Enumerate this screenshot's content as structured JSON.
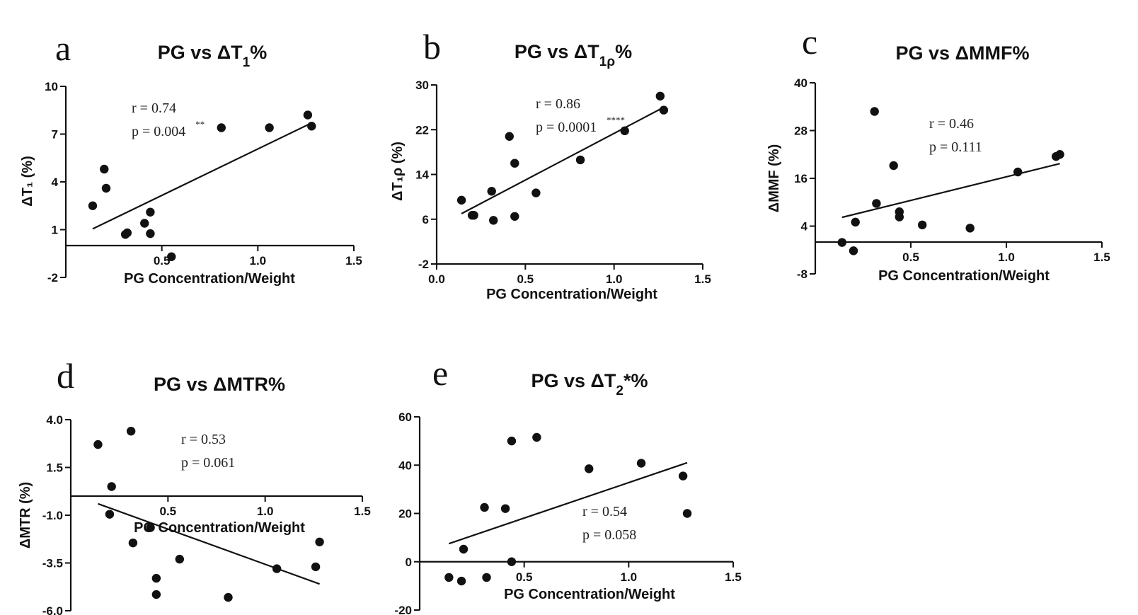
{
  "chart_data": [
    {
      "id": "a",
      "type": "scatter",
      "panel_label": "a",
      "title": "PG vs ΔT₁%",
      "xlabel": "PG Concentration/Weight",
      "ylabel": "ΔT₁ (%)",
      "xlim": [
        0,
        1.5
      ],
      "ylim": [
        -2,
        10
      ],
      "x_axis_at_y": 0,
      "x_ticks": [
        {
          "v": 0.5,
          "label": "0.5"
        },
        {
          "v": 1.0,
          "label": "1.0"
        },
        {
          "v": 1.5,
          "label": "1.5"
        }
      ],
      "y_ticks": [
        {
          "v": -2,
          "label": "-2"
        },
        {
          "v": 1,
          "label": "1"
        },
        {
          "v": 4,
          "label": "4"
        },
        {
          "v": 7,
          "label": "7"
        },
        {
          "v": 10,
          "label": "10"
        }
      ],
      "points": [
        {
          "x": 0.14,
          "y": 2.5
        },
        {
          "x": 0.2,
          "y": 4.8
        },
        {
          "x": 0.21,
          "y": 3.6
        },
        {
          "x": 0.31,
          "y": 0.7
        },
        {
          "x": 0.32,
          "y": 0.8
        },
        {
          "x": 0.41,
          "y": 1.4
        },
        {
          "x": 0.44,
          "y": 2.1
        },
        {
          "x": 0.44,
          "y": 0.75
        },
        {
          "x": 0.55,
          "y": -0.7
        },
        {
          "x": 0.81,
          "y": 7.4
        },
        {
          "x": 1.06,
          "y": 7.4
        },
        {
          "x": 1.26,
          "y": 8.2
        },
        {
          "x": 1.28,
          "y": 7.5
        }
      ],
      "fit": {
        "x1": 0.14,
        "y1": 1.05,
        "x2": 1.28,
        "y2": 7.7
      },
      "stats": {
        "r": "r = 0.74",
        "p": "p = 0.004",
        "p_sup": "**"
      }
    },
    {
      "id": "b",
      "type": "scatter",
      "panel_label": "b",
      "title": "PG vs ΔT₁ρ%",
      "xlabel": "PG Concentration/Weight",
      "ylabel": "ΔT₁ρ (%)",
      "xlim": [
        0,
        1.5
      ],
      "ylim": [
        -2,
        30
      ],
      "x_axis_at_y": -2,
      "x_ticks": [
        {
          "v": 0.0,
          "label": "0.0"
        },
        {
          "v": 0.5,
          "label": "0.5"
        },
        {
          "v": 1.0,
          "label": "1.0"
        },
        {
          "v": 1.5,
          "label": "1.5"
        }
      ],
      "y_ticks": [
        {
          "v": -2,
          "label": "-2"
        },
        {
          "v": 6,
          "label": "6"
        },
        {
          "v": 14,
          "label": "14"
        },
        {
          "v": 22,
          "label": "22"
        },
        {
          "v": 30,
          "label": "30"
        }
      ],
      "points": [
        {
          "x": 0.14,
          "y": 9.4
        },
        {
          "x": 0.2,
          "y": 6.7
        },
        {
          "x": 0.21,
          "y": 6.7
        },
        {
          "x": 0.31,
          "y": 11.0
        },
        {
          "x": 0.32,
          "y": 5.8
        },
        {
          "x": 0.41,
          "y": 20.8
        },
        {
          "x": 0.44,
          "y": 16.0
        },
        {
          "x": 0.44,
          "y": 6.5
        },
        {
          "x": 0.56,
          "y": 10.7
        },
        {
          "x": 0.81,
          "y": 16.6
        },
        {
          "x": 1.06,
          "y": 21.8
        },
        {
          "x": 1.26,
          "y": 28.0
        },
        {
          "x": 1.28,
          "y": 25.5
        }
      ],
      "fit": {
        "x1": 0.14,
        "y1": 7.0,
        "x2": 1.28,
        "y2": 26.0
      },
      "stats": {
        "r": "r = 0.86",
        "p": "p = 0.0001",
        "p_sup": "****"
      }
    },
    {
      "id": "c",
      "type": "scatter",
      "panel_label": "c",
      "title": "PG vs ΔMMF%",
      "xlabel": "PG Concentration/Weight",
      "ylabel": "ΔMMF (%)",
      "xlim": [
        0,
        1.5
      ],
      "ylim": [
        -8,
        40
      ],
      "x_axis_at_y": 0,
      "x_ticks": [
        {
          "v": 0.5,
          "label": "0.5"
        },
        {
          "v": 1.0,
          "label": "1.0"
        },
        {
          "v": 1.5,
          "label": "1.5"
        }
      ],
      "y_ticks": [
        {
          "v": -8,
          "label": "-8"
        },
        {
          "v": 4,
          "label": "4"
        },
        {
          "v": 16,
          "label": "16"
        },
        {
          "v": 28,
          "label": "28"
        },
        {
          "v": 40,
          "label": "40"
        }
      ],
      "points": [
        {
          "x": 0.14,
          "y": -0.1
        },
        {
          "x": 0.2,
          "y": -2.2
        },
        {
          "x": 0.21,
          "y": 5.0
        },
        {
          "x": 0.31,
          "y": 32.8
        },
        {
          "x": 0.32,
          "y": 9.7
        },
        {
          "x": 0.41,
          "y": 19.2
        },
        {
          "x": 0.44,
          "y": 7.6
        },
        {
          "x": 0.44,
          "y": 6.3
        },
        {
          "x": 0.56,
          "y": 4.3
        },
        {
          "x": 0.81,
          "y": 3.5
        },
        {
          "x": 1.06,
          "y": 17.6
        },
        {
          "x": 1.26,
          "y": 21.5
        },
        {
          "x": 1.28,
          "y": 22.0
        }
      ],
      "fit": {
        "x1": 0.14,
        "y1": 6.2,
        "x2": 1.28,
        "y2": 19.7
      },
      "stats": {
        "r": "r = 0.46",
        "p": "p = 0.111",
        "p_sup": ""
      }
    },
    {
      "id": "d",
      "type": "scatter",
      "panel_label": "d",
      "title": "PG vs ΔMTR%",
      "xlabel": "PG Concentration/Weight",
      "ylabel": "ΔMTR (%)",
      "xlim": [
        0,
        1.5
      ],
      "ylim": [
        -6,
        4
      ],
      "x_axis_at_y": 0,
      "x_ticks": [
        {
          "v": 0.5,
          "label": "0.5"
        },
        {
          "v": 1.0,
          "label": "1.0"
        },
        {
          "v": 1.5,
          "label": "1.5"
        }
      ],
      "y_ticks": [
        {
          "v": -6,
          "label": "-6.0"
        },
        {
          "v": -3.5,
          "label": "-3.5"
        },
        {
          "v": -1,
          "label": "-1.0"
        },
        {
          "v": 1.5,
          "label": "1.5"
        },
        {
          "v": 4,
          "label": "4.0"
        }
      ],
      "points": [
        {
          "x": 0.14,
          "y": 2.7
        },
        {
          "x": 0.2,
          "y": -0.95
        },
        {
          "x": 0.21,
          "y": 0.5
        },
        {
          "x": 0.31,
          "y": 3.4
        },
        {
          "x": 0.32,
          "y": -2.45
        },
        {
          "x": 0.41,
          "y": -1.65
        },
        {
          "x": 0.44,
          "y": -4.3
        },
        {
          "x": 0.44,
          "y": -5.15
        },
        {
          "x": 0.56,
          "y": -3.3
        },
        {
          "x": 0.81,
          "y": -5.3
        },
        {
          "x": 1.06,
          "y": -3.8
        },
        {
          "x": 1.26,
          "y": -3.7
        },
        {
          "x": 1.28,
          "y": -2.4
        }
      ],
      "fit": {
        "x1": 0.14,
        "y1": -0.4,
        "x2": 1.28,
        "y2": -4.6
      },
      "stats": {
        "r": "r = 0.53",
        "p": "p = 0.061",
        "p_sup": ""
      }
    },
    {
      "id": "e",
      "type": "scatter",
      "panel_label": "e",
      "title": "PG vs ΔT₂*%",
      "xlabel": "PG Concentration/Weight",
      "ylabel": "",
      "xlim": [
        0,
        1.5
      ],
      "ylim": [
        -20,
        60
      ],
      "x_axis_at_y": 0,
      "x_ticks": [
        {
          "v": 0.5,
          "label": "0.5"
        },
        {
          "v": 1.0,
          "label": "1.0"
        },
        {
          "v": 1.5,
          "label": "1.5"
        }
      ],
      "y_ticks": [
        {
          "v": -20,
          "label": "-20"
        },
        {
          "v": 0,
          "label": "0"
        },
        {
          "v": 20,
          "label": "20"
        },
        {
          "v": 40,
          "label": "40"
        },
        {
          "v": 60,
          "label": "60"
        }
      ],
      "points": [
        {
          "x": 0.14,
          "y": -6.5
        },
        {
          "x": 0.2,
          "y": -8.0
        },
        {
          "x": 0.21,
          "y": 5.2
        },
        {
          "x": 0.31,
          "y": 22.5
        },
        {
          "x": 0.32,
          "y": -6.5
        },
        {
          "x": 0.41,
          "y": 22.0
        },
        {
          "x": 0.44,
          "y": 50.0
        },
        {
          "x": 0.44,
          "y": 0.0
        },
        {
          "x": 0.56,
          "y": 51.5
        },
        {
          "x": 0.81,
          "y": 38.5
        },
        {
          "x": 1.06,
          "y": 40.8
        },
        {
          "x": 1.26,
          "y": 35.5
        },
        {
          "x": 1.28,
          "y": 20.0
        }
      ],
      "fit": {
        "x1": 0.14,
        "y1": 7.5,
        "x2": 1.28,
        "y2": 41.0
      },
      "stats": {
        "r": "r = 0.54",
        "p": "p = 0.058",
        "p_sup": ""
      }
    }
  ]
}
